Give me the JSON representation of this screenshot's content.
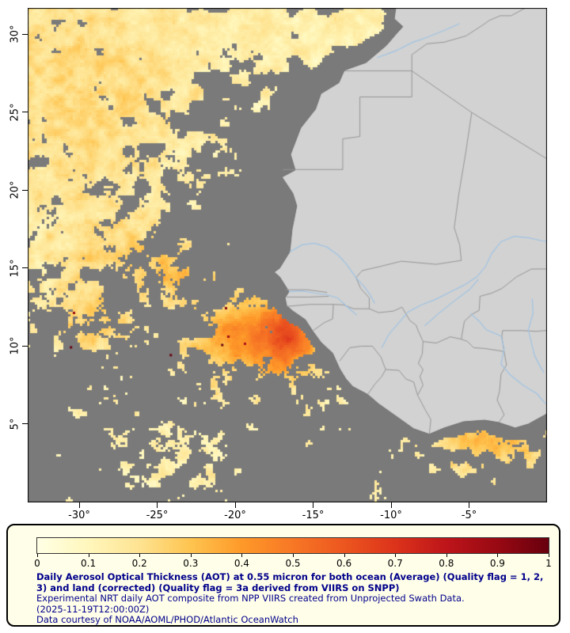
{
  "axes": {
    "lat_ticks": [
      {
        "label": "30°",
        "value": 30
      },
      {
        "label": "25°",
        "value": 25
      },
      {
        "label": "20°",
        "value": 20
      },
      {
        "label": "15°",
        "value": 15
      },
      {
        "label": "10°",
        "value": 10
      },
      {
        "label": "5°",
        "value": 5
      }
    ],
    "lon_ticks": [
      {
        "label": "-30°",
        "value": -30
      },
      {
        "label": "-25°",
        "value": -25
      },
      {
        "label": "-20°",
        "value": -20
      },
      {
        "label": "-15°",
        "value": -15
      },
      {
        "label": "-10°",
        "value": -10
      },
      {
        "label": "-5°",
        "value": -5
      }
    ]
  },
  "legend": {
    "tick_labels": [
      "0",
      "0.1",
      "0.2",
      "0.3",
      "0.4",
      "0.5",
      "0.6",
      "0.7",
      "0.8",
      "0.9",
      "1"
    ],
    "colorbar_stops": [
      "#ffffe5",
      "#fff7bc",
      "#fee391",
      "#fec44f",
      "#fe9929",
      "#f77725",
      "#ec561f",
      "#dc331b",
      "#bd151a",
      "#980913",
      "#67000d"
    ],
    "range": [
      0,
      1
    ],
    "caption": {
      "title": "Daily Aerosol Optical Thickness (AOT) at 0.55 micron for both ocean (Average) (Quality flag = 1, 2, 3) and land (corrected) (Quality flag = 3a derived from VIIRS on SNPP)",
      "line2": "Experimental NRT daily AOT composite from NPP VIIRS created from Unprojected Swath Data.",
      "timestamp": "(2025-11-19T12:00:00Z)",
      "credit": "Data courtesy of NOAA/AOML/PHOD/Atlantic OceanWatch"
    }
  },
  "colors": {
    "ocean_nodata": "#7a7a7a",
    "land": "#d2d2d2",
    "coastline": "#6e6e6e",
    "country_border": "#969696",
    "river": "#a0c4e4",
    "frame": "#000000",
    "axis_text": "#000000",
    "legend_background": "#fffee9",
    "legend_border": "#000000",
    "caption_text": "#00008b",
    "high_aot_speck": "#6a0010"
  }
}
